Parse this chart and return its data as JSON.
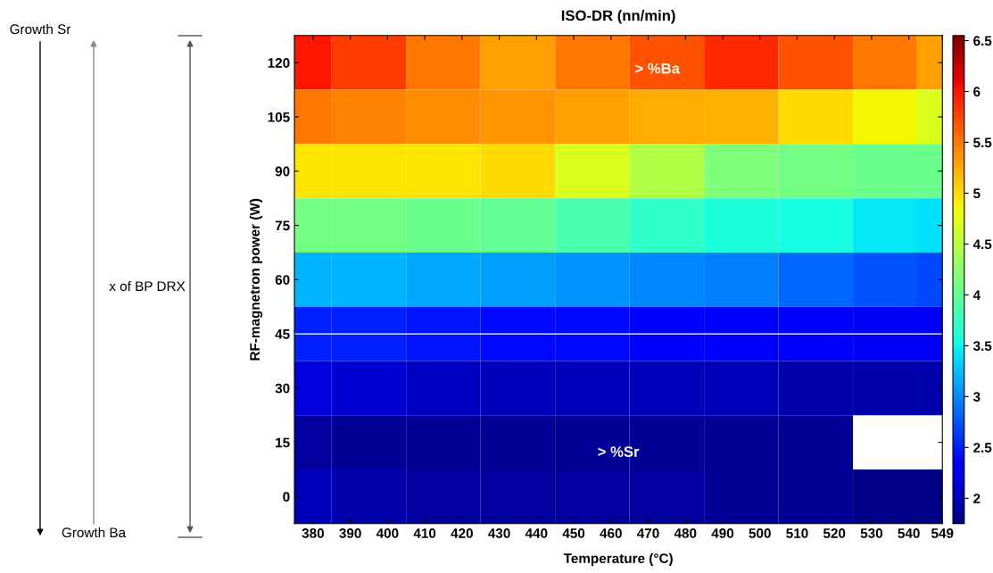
{
  "chart_data": {
    "type": "heatmap",
    "title": "ISO-DR (nn/min)",
    "xlabel": "Temperature (°C)",
    "ylabel": "RF-magnetron power (W)",
    "x": [
      375,
      395,
      415,
      435,
      455,
      475,
      495,
      515,
      535,
      549
    ],
    "y_categories": [
      "120",
      "105",
      "90",
      "75",
      "60",
      "45",
      "30",
      "15",
      "0"
    ],
    "cells": [
      [
        6.0,
        5.8,
        5.5,
        5.3,
        5.5,
        5.7,
        5.9,
        5.7,
        5.5,
        5.3
      ],
      [
        5.5,
        5.45,
        5.4,
        5.35,
        5.3,
        5.25,
        5.2,
        5.0,
        4.85,
        4.7
      ],
      [
        4.95,
        4.95,
        4.95,
        5.0,
        4.7,
        4.45,
        4.15,
        4.1,
        4.05,
        4.05
      ],
      [
        4.1,
        4.1,
        4.05,
        4.0,
        3.85,
        3.7,
        3.6,
        3.55,
        3.45,
        3.4
      ],
      [
        3.2,
        3.2,
        3.15,
        3.1,
        3.05,
        3.0,
        2.95,
        2.85,
        2.75,
        2.7
      ],
      [
        2.5,
        2.5,
        2.45,
        2.4,
        2.4,
        2.35,
        2.35,
        2.3,
        2.25,
        2.25
      ],
      [
        2.15,
        2.1,
        2.05,
        2.0,
        2.0,
        2.0,
        2.0,
        1.95,
        1.95,
        1.95
      ],
      [
        1.9,
        1.85,
        1.85,
        1.85,
        1.85,
        1.85,
        1.85,
        1.85,
        null,
        null
      ],
      [
        2.0,
        1.95,
        1.9,
        1.9,
        1.9,
        1.9,
        1.85,
        1.85,
        1.8,
        1.8
      ]
    ],
    "xlim": [
      375,
      549
    ],
    "xticks": [
      380,
      390,
      400,
      410,
      420,
      430,
      440,
      450,
      460,
      470,
      480,
      490,
      500,
      510,
      520,
      530,
      540,
      549
    ],
    "clim": [
      1.75,
      6.55
    ],
    "cticks": [
      2,
      2.5,
      3,
      3.5,
      4,
      4.5,
      5,
      5.5,
      6,
      6.5
    ],
    "ref_lines": [
      {
        "axis": "y",
        "value": "45",
        "color": "#ffffff"
      }
    ],
    "annotations": [
      "Growth Sr",
      "Growth Ba",
      "x of BP DRX",
      "> %Ba",
      "> %Sr"
    ]
  }
}
